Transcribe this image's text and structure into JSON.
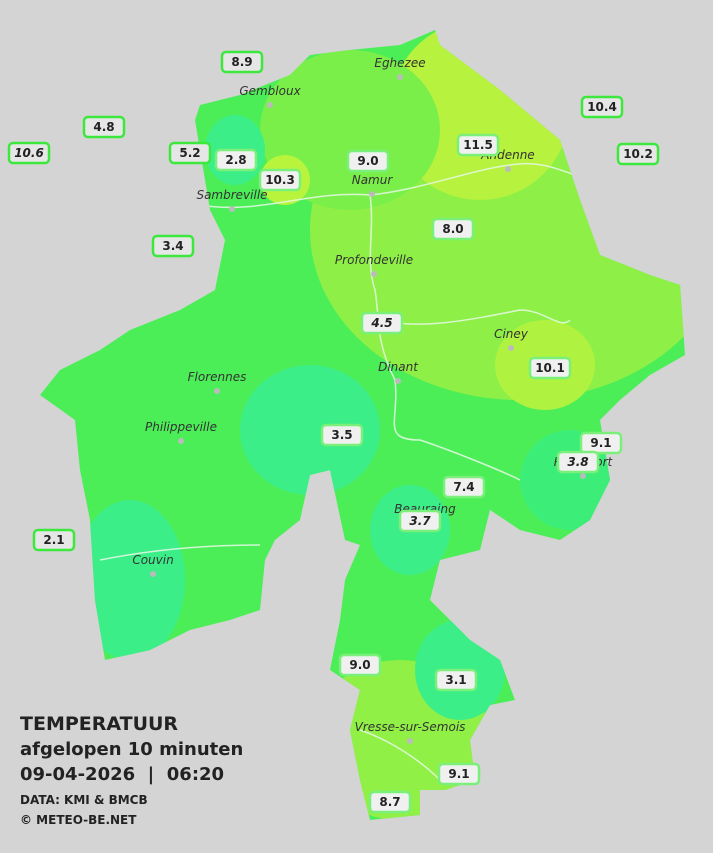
{
  "title": {
    "line1": "TEMPERATUUR",
    "line2": "afgelopen 10 minuten",
    "line3": "09-04-2026  |  06:20",
    "source": "DATA: KMI & BMCB",
    "credit": "© METEO-BE.NET"
  },
  "places": [
    "Eghezee",
    "Gembloux",
    "Andenne",
    "Namur",
    "Sambreville",
    "Profondeville",
    "Ciney",
    "Dinant",
    "Florennes",
    "Philippeville",
    "Beauraing",
    "Rochefort",
    "Couvin",
    "Vresse-sur-Semois"
  ],
  "stations": [
    "8.9",
    "4.8",
    "10.6",
    "5.2",
    "2.8",
    "10.3",
    "9.0",
    "11.5",
    "10.4",
    "10.2",
    "3.4",
    "8.0",
    "4.5",
    "10.1",
    "3.5",
    "9.1",
    "3.8",
    "7.4",
    "3.7",
    "2.1",
    "9.0",
    "3.1",
    "9.1",
    "8.7"
  ]
}
